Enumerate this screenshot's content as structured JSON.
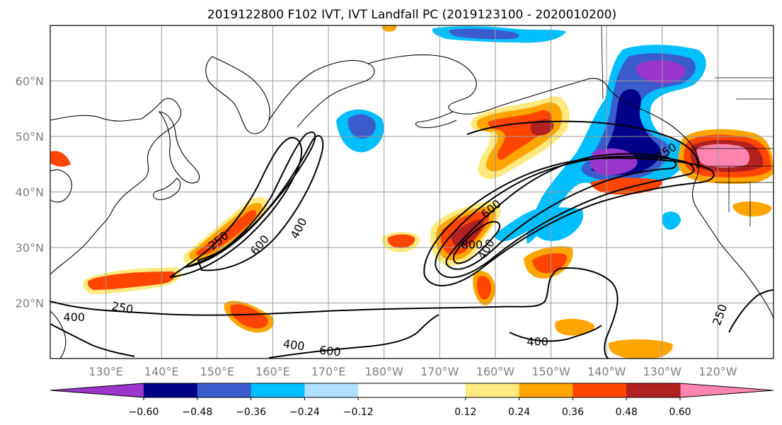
{
  "title": "2019122800 F102 IVT, IVT Landfall PC (2019123100 - 2020010200)",
  "map": {
    "lat_labels": [
      "20°N",
      "30°N",
      "40°N",
      "50°N",
      "60°N"
    ],
    "lat_values": [
      20,
      30,
      40,
      50,
      60
    ],
    "lon_labels": [
      "130°E",
      "140°E",
      "150°E",
      "160°E",
      "170°E",
      "180°W",
      "170°W",
      "160°W",
      "150°W",
      "140°W",
      "130°W",
      "120°W"
    ],
    "lon_values": [
      130,
      140,
      150,
      160,
      170,
      180,
      190,
      200,
      210,
      220,
      230,
      240
    ],
    "lon_range": [
      120,
      250
    ],
    "lat_range": [
      10,
      70
    ],
    "gridlines": true
  },
  "contour_labels": [
    {
      "text": "250",
      "lon": 150.2,
      "lat": 31.3,
      "angle": -38
    },
    {
      "text": "600",
      "lon": 157.6,
      "lat": 30.5,
      "angle": -50
    },
    {
      "text": "400",
      "lon": 164.6,
      "lat": 33.5,
      "angle": -62
    },
    {
      "text": "250",
      "lon": 133,
      "lat": 19.2,
      "angle": 10
    },
    {
      "text": "400",
      "lon": 124.3,
      "lat": 17.5,
      "angle": 0
    },
    {
      "text": "400",
      "lon": 163.8,
      "lat": 12.5,
      "angle": 8
    },
    {
      "text": "600",
      "lon": 170.3,
      "lat": 11.4,
      "angle": 6
    },
    {
      "text": "600",
      "lon": 199.2,
      "lat": 37,
      "angle": -40
    },
    {
      "text": "800",
      "lon": 195.8,
      "lat": 30.6,
      "angle": 0
    },
    {
      "text": "400",
      "lon": 198.3,
      "lat": 29.7,
      "angle": -60
    },
    {
      "text": "400",
      "lon": 207.6,
      "lat": 13.1,
      "angle": 0
    },
    {
      "text": "250",
      "lon": 230.7,
      "lat": 47.3,
      "angle": -35
    },
    {
      "text": "250",
      "lon": 240.3,
      "lat": 17.9,
      "angle": -70
    }
  ],
  "colorbar": {
    "ticks": [
      "−0.60",
      "−0.48",
      "−0.36",
      "−0.24",
      "−0.12",
      "0.12",
      "0.24",
      "0.36",
      "0.48",
      "0.60"
    ],
    "bounds": [
      -0.6,
      -0.48,
      -0.36,
      -0.24,
      -0.12,
      0.12,
      0.24,
      0.36,
      0.48,
      0.6
    ],
    "under_color": "#9b35cc",
    "over_color": "#ff85b0",
    "colors": [
      "#000089",
      "#3b5ccc",
      "#00bfff",
      "#b0e0ff",
      "#ffffff",
      "#ffea80",
      "#ffa500",
      "#ff4500",
      "#b22222"
    ],
    "extend": "both"
  },
  "contour_levels": [
    250,
    400,
    600,
    800
  ]
}
